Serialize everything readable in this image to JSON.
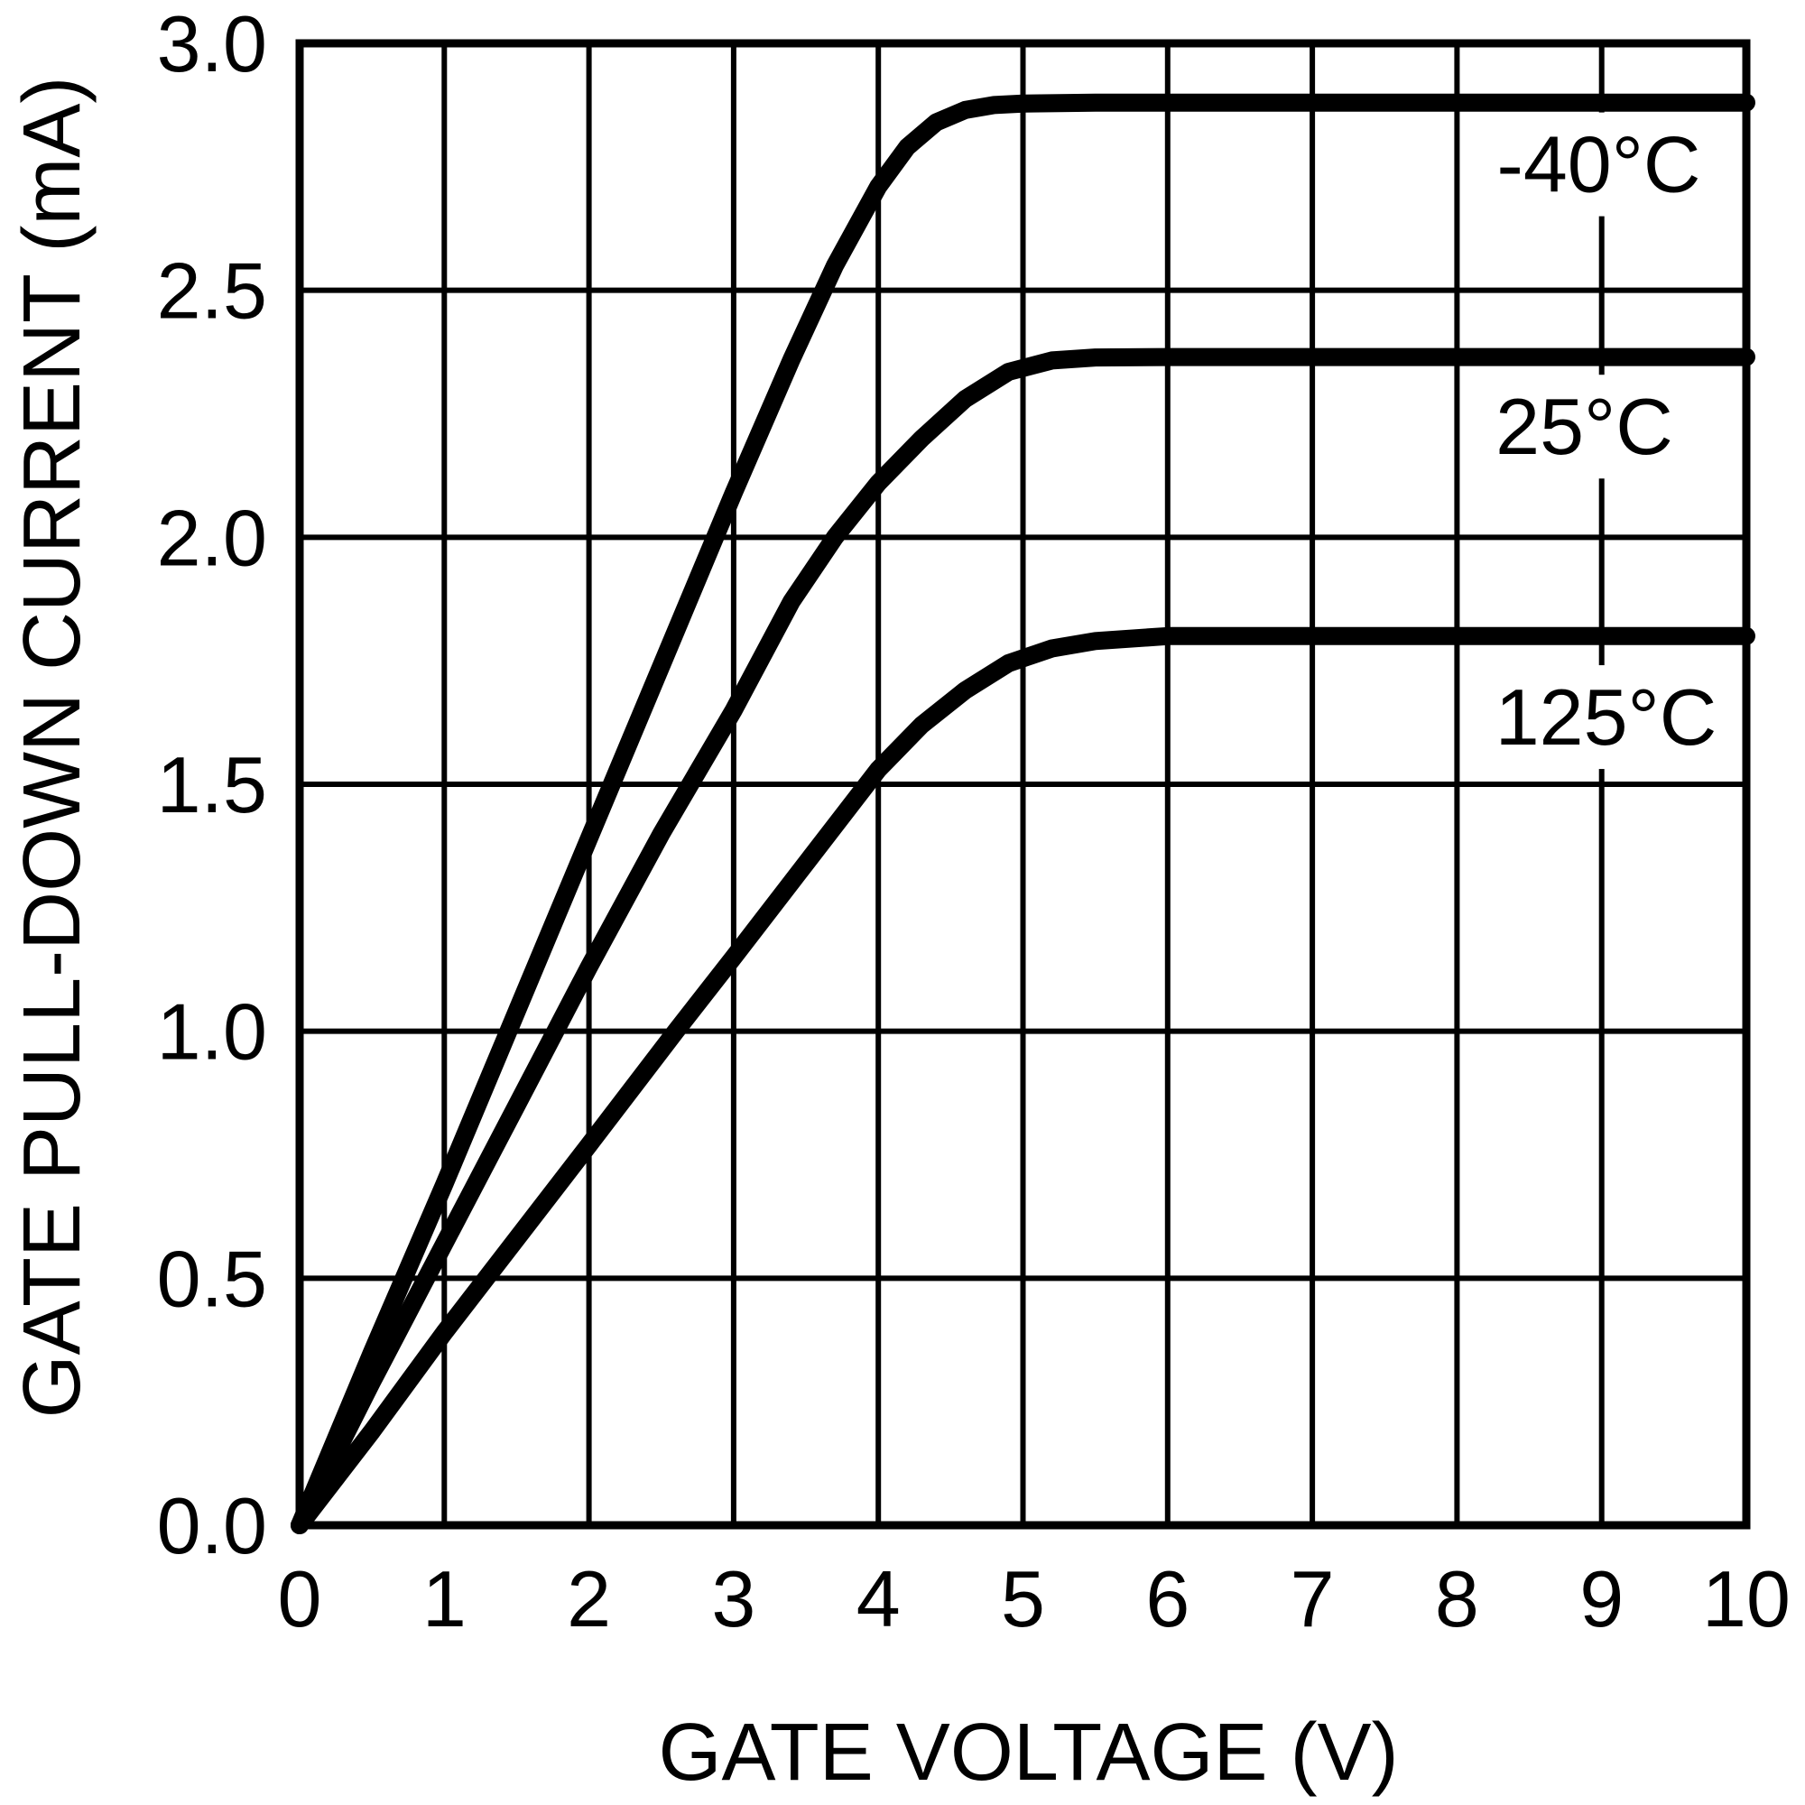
{
  "chart_data": {
    "type": "line",
    "title": "",
    "xlabel": "GATE VOLTAGE (V)",
    "ylabel": "GATE PULL-DOWN CURRENT (mA)",
    "xlim": [
      0,
      10
    ],
    "ylim": [
      0.0,
      3.0
    ],
    "x_ticks": [
      0,
      1,
      2,
      3,
      4,
      5,
      6,
      7,
      8,
      9,
      10
    ],
    "x_tick_labels": [
      "0",
      "1",
      "2",
      "3",
      "4",
      "5",
      "6",
      "7",
      "8",
      "9",
      "10"
    ],
    "y_ticks": [
      0.0,
      0.5,
      1.0,
      1.5,
      2.0,
      2.5,
      3.0
    ],
    "y_tick_labels": [
      "0.0",
      "0.5",
      "1.0",
      "1.5",
      "2.0",
      "2.5",
      "3.0"
    ],
    "grid": "on",
    "grid_spacing": {
      "x_volts": 1,
      "y_ma": 0.5
    },
    "legend_position": "inline-labels-right",
    "line_color": "#000000",
    "background_color": "#ffffff",
    "series": [
      {
        "name": "-40°C",
        "label": "-40°C",
        "label_anchor": {
          "v": 8.98,
          "ma": 2.755
        },
        "plateau_ma": 2.88,
        "points": [
          [
            0,
            0
          ],
          [
            0.5,
            0.35
          ],
          [
            1,
            0.69
          ],
          [
            1.5,
            1.04
          ],
          [
            2,
            1.39
          ],
          [
            2.5,
            1.74
          ],
          [
            3,
            2.09
          ],
          [
            3.4,
            2.36
          ],
          [
            3.7,
            2.55
          ],
          [
            4.0,
            2.71
          ],
          [
            4.2,
            2.79
          ],
          [
            4.4,
            2.84
          ],
          [
            4.6,
            2.865
          ],
          [
            4.8,
            2.875
          ],
          [
            5.0,
            2.878
          ],
          [
            5.5,
            2.88
          ],
          [
            6,
            2.88
          ],
          [
            8,
            2.88
          ],
          [
            10,
            2.88
          ]
        ]
      },
      {
        "name": "25°C",
        "label": "25°C",
        "label_anchor": {
          "v": 8.88,
          "ma": 2.224
        },
        "plateau_ma": 2.365,
        "points": [
          [
            0,
            0
          ],
          [
            0.5,
            0.29
          ],
          [
            1,
            0.57
          ],
          [
            1.5,
            0.85
          ],
          [
            2,
            1.13
          ],
          [
            2.5,
            1.4
          ],
          [
            3,
            1.65
          ],
          [
            3.4,
            1.87
          ],
          [
            3.7,
            2.0
          ],
          [
            4.0,
            2.11
          ],
          [
            4.3,
            2.2
          ],
          [
            4.6,
            2.28
          ],
          [
            4.9,
            2.335
          ],
          [
            5.2,
            2.358
          ],
          [
            5.5,
            2.364
          ],
          [
            6,
            2.365
          ],
          [
            8,
            2.365
          ],
          [
            10,
            2.365
          ]
        ]
      },
      {
        "name": "125°C",
        "label": "125°C",
        "label_anchor": {
          "v": 9.03,
          "ma": 1.636
        },
        "plateau_ma": 1.8,
        "points": [
          [
            0,
            0
          ],
          [
            0.5,
            0.19
          ],
          [
            1,
            0.39
          ],
          [
            1.5,
            0.58
          ],
          [
            2,
            0.77
          ],
          [
            2.6,
            1.0
          ],
          [
            3,
            1.15
          ],
          [
            3.5,
            1.34
          ],
          [
            4,
            1.53
          ],
          [
            4.3,
            1.62
          ],
          [
            4.6,
            1.69
          ],
          [
            4.9,
            1.745
          ],
          [
            5.2,
            1.775
          ],
          [
            5.5,
            1.79
          ],
          [
            6,
            1.8
          ],
          [
            8,
            1.8
          ],
          [
            10,
            1.8
          ]
        ]
      }
    ]
  }
}
